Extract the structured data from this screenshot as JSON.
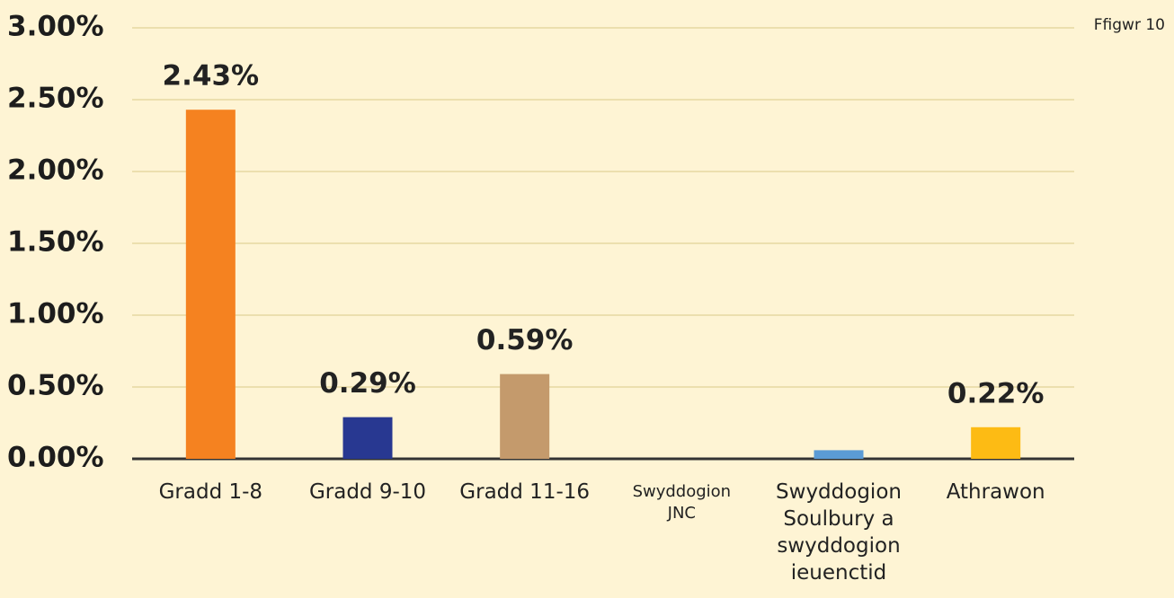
{
  "chart_data": {
    "type": "bar",
    "annotation": "Ffigwr 10",
    "categories": [
      "Gradd 1-8",
      "Gradd 9-10",
      "Gradd 11-16",
      "Swyddogion JNC",
      "Swyddogion Soulbury a swyddogion ieuenctid",
      "Athrawon"
    ],
    "values": [
      2.43,
      0.29,
      0.59,
      0,
      0.06,
      0.22
    ],
    "value_labels": [
      "2.43%",
      "0.29%",
      "0.59%",
      null,
      null,
      "0.22%"
    ],
    "colors": [
      "#f58220",
      "#283891",
      "#c49a6c",
      "#f58220",
      "#5b9bd5",
      "#fdbb14"
    ],
    "ylim": [
      0,
      3
    ],
    "yticks": [
      {
        "value": 0,
        "label": "0.00%"
      },
      {
        "value": 0.5,
        "label": "0.50%"
      },
      {
        "value": 1,
        "label": "1.00%"
      },
      {
        "value": 1.5,
        "label": "1.50%"
      },
      {
        "value": 2,
        "label": "2.00%"
      },
      {
        "value": 2.5,
        "label": "2.50%"
      },
      {
        "value": 3,
        "label": "3.00%"
      }
    ],
    "grid": true
  }
}
